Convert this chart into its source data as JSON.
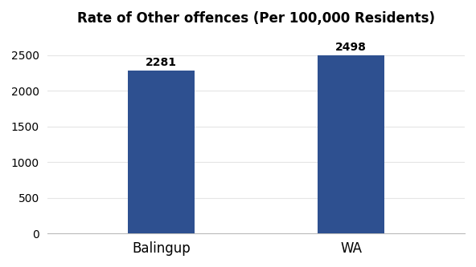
{
  "categories": [
    "Balingup",
    "WA"
  ],
  "values": [
    2281,
    2498
  ],
  "bar_color": "#2e5090",
  "title": "Rate of Other offences (Per 100,000 Residents)",
  "title_fontsize": 12,
  "label_fontsize": 12,
  "value_fontsize": 10,
  "ylim": [
    0,
    2800
  ],
  "yticks": [
    0,
    500,
    1000,
    1500,
    2000,
    2500
  ],
  "background_color": "#ffffff",
  "bar_width": 0.35
}
